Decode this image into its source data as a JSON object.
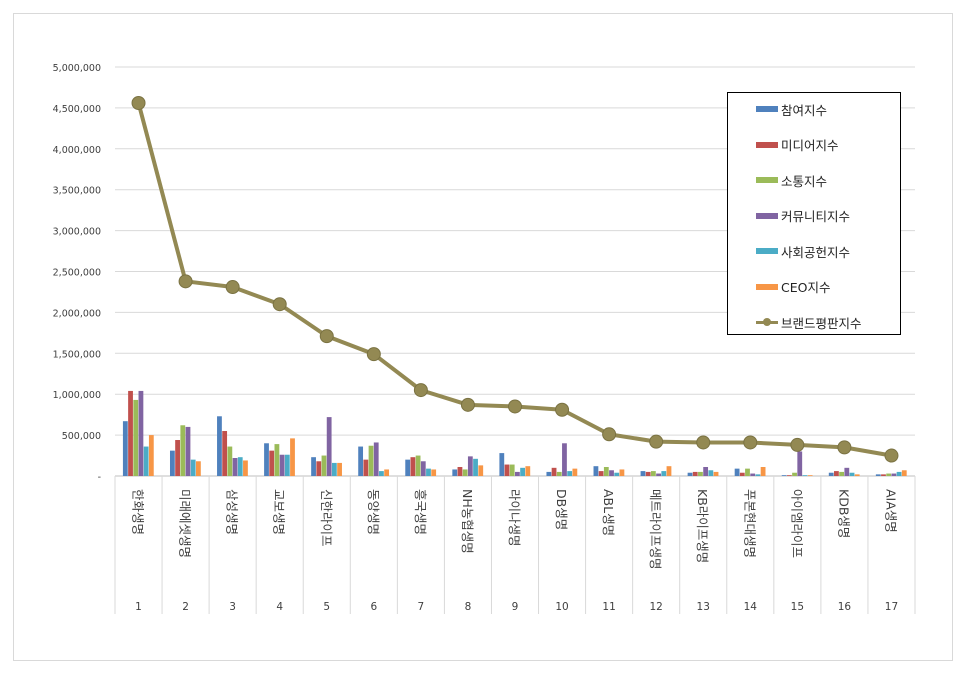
{
  "chart_data": {
    "type": "bar",
    "title": "",
    "xlabel": "",
    "ylabel": "",
    "ylim": [
      0,
      5000000
    ],
    "y_ticks": [
      "-",
      "500,000",
      "1,000,000",
      "1,500,000",
      "2,000,000",
      "2,500,000",
      "3,000,000",
      "3,500,000",
      "4,000,000",
      "4,500,000",
      "5,000,000"
    ],
    "categories": [
      "한화생명",
      "미래에셋생명",
      "삼성생명",
      "교보생명",
      "신한라이프",
      "동양생명",
      "흥국생명",
      "NH농협생명",
      "라이나생명",
      "DB생명",
      "ABL생명",
      "메트라이프생명",
      "KB라이프생명",
      "푸본현대생명",
      "아이엠라이프",
      "KDB생명",
      "AIA생명"
    ],
    "ranks": [
      "1",
      "2",
      "3",
      "4",
      "5",
      "6",
      "7",
      "8",
      "9",
      "10",
      "11",
      "12",
      "13",
      "14",
      "15",
      "16",
      "17"
    ],
    "legend_position": "top-right",
    "grid": true,
    "series": [
      {
        "name": "참여지수",
        "color": "#4f81bd",
        "kind": "bar",
        "values": [
          670000,
          310000,
          730000,
          400000,
          230000,
          360000,
          200000,
          80000,
          280000,
          50000,
          120000,
          60000,
          40000,
          90000,
          10000,
          40000,
          20000
        ]
      },
      {
        "name": "미디어지수",
        "color": "#c0504d",
        "kind": "bar",
        "values": [
          1040000,
          440000,
          550000,
          310000,
          180000,
          200000,
          230000,
          110000,
          140000,
          100000,
          60000,
          50000,
          50000,
          40000,
          10000,
          60000,
          20000
        ]
      },
      {
        "name": "소통지수",
        "color": "#9bbb59",
        "kind": "bar",
        "values": [
          930000,
          620000,
          360000,
          390000,
          250000,
          370000,
          250000,
          80000,
          140000,
          50000,
          110000,
          60000,
          50000,
          90000,
          40000,
          50000,
          30000
        ]
      },
      {
        "name": "커뮤니티지수",
        "color": "#8064a2",
        "kind": "bar",
        "values": [
          1040000,
          600000,
          220000,
          260000,
          720000,
          410000,
          180000,
          240000,
          50000,
          400000,
          70000,
          30000,
          110000,
          30000,
          300000,
          100000,
          30000
        ]
      },
      {
        "name": "사회공헌지수",
        "color": "#4bacc6",
        "kind": "bar",
        "values": [
          360000,
          200000,
          230000,
          260000,
          160000,
          60000,
          90000,
          210000,
          100000,
          60000,
          40000,
          60000,
          70000,
          20000,
          10000,
          40000,
          50000
        ]
      },
      {
        "name": "CEO지수",
        "color": "#f79646",
        "kind": "bar",
        "values": [
          500000,
          180000,
          190000,
          460000,
          160000,
          80000,
          80000,
          130000,
          120000,
          90000,
          80000,
          120000,
          50000,
          110000,
          10000,
          20000,
          70000
        ]
      },
      {
        "name": "브랜드평판지수",
        "color": "#938953",
        "kind": "line",
        "values": [
          4560000,
          2380000,
          2310000,
          2100000,
          1710000,
          1490000,
          1050000,
          870000,
          850000,
          810000,
          510000,
          420000,
          410000,
          410000,
          380000,
          350000,
          250000
        ]
      }
    ]
  }
}
